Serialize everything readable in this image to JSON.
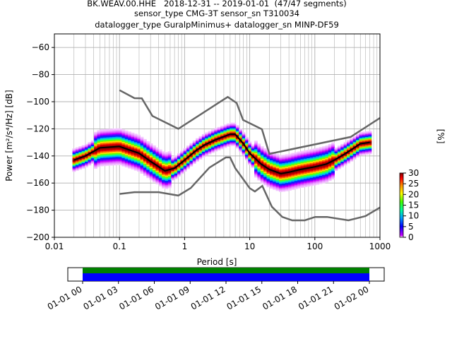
{
  "figure": {
    "title_lines": [
      "BK.WEAV.00.HHE   2018-12-31 -- 2019-01-01  (47/47 segments)",
      "sensor_type CMG-3T sensor_sn T310034",
      "datalogger_type GuralpMinimus+ datalogger_sn MINP-DF59"
    ]
  },
  "chart_data": [
    {
      "type": "heatmap",
      "subtype": "probabilistic power spectral density",
      "xlabel": "Period [s]",
      "ylabel": "Power [m²/s⁴/Hz] [dB]",
      "xscale": "log",
      "xlim": [
        0.01,
        1000
      ],
      "ylim": [
        -200,
        -50
      ],
      "x_ticks": [
        0.01,
        0.1,
        1,
        10,
        100,
        1000
      ],
      "x_tick_labels": [
        "0.01",
        "0.1",
        "1",
        "10",
        "100",
        "1000"
      ],
      "y_ticks": [
        -200,
        -180,
        -160,
        -140,
        -120,
        -100,
        -80,
        -60
      ],
      "y_tick_labels": [
        "−200",
        "−180",
        "−160",
        "−140",
        "−120",
        "−100",
        "−80",
        "−60"
      ],
      "grid": true,
      "colorbar": {
        "label": "[%]",
        "min": 0,
        "max": 30,
        "ticks": [
          0,
          5,
          10,
          15,
          20,
          25,
          30
        ],
        "colormap": [
          "#ffffff",
          "#c800ff",
          "#0000ff",
          "#00a0ff",
          "#00ffa0",
          "#40ff00",
          "#ffff00",
          "#ff9600",
          "#ff0000",
          "#800000"
        ]
      },
      "series": [
        {
          "role": "mean",
          "color": "#000000",
          "x": [
            0.02,
            0.03,
            0.05,
            0.1,
            0.2,
            0.3,
            0.5,
            0.7,
            1,
            1.5,
            2,
            3,
            5,
            6,
            8,
            10,
            15,
            20,
            30,
            40,
            60,
            100,
            150,
            200,
            300,
            500,
            700
          ],
          "y": [
            -143,
            -140,
            -134,
            -133,
            -138,
            -144,
            -151,
            -149,
            -143,
            -136,
            -132,
            -128,
            -124,
            -124,
            -131,
            -138,
            -146,
            -150,
            -153,
            -152,
            -150,
            -148,
            -146,
            -143,
            -138,
            -131,
            -130
          ]
        },
        {
          "role": "noise model high (NHNM)",
          "color": "#666666",
          "x": [
            0.1,
            0.17,
            0.22,
            0.32,
            0.8,
            3.8,
            4.6,
            6.3,
            7.9,
            15.4,
            20,
            354.8,
            1000
          ],
          "y": [
            -91.5,
            -97.4,
            -97.5,
            -110.5,
            -120,
            -99,
            -96.5,
            -101,
            -113.5,
            -120.3,
            -138.5,
            -126,
            -112
          ]
        },
        {
          "role": "noise model low (NLNM)",
          "color": "#666666",
          "x": [
            0.1,
            0.17,
            0.4,
            0.8,
            1.24,
            2.4,
            4.3,
            5,
            6,
            10,
            12,
            15.6,
            21.9,
            31.6,
            45,
            70,
            101,
            154,
            328,
            600,
            1000
          ],
          "y": [
            -168,
            -166.7,
            -166.7,
            -169.2,
            -163.7,
            -148.6,
            -141.1,
            -141.1,
            -149,
            -163.8,
            -166.2,
            -162.1,
            -177.5,
            -185,
            -187.5,
            -187.5,
            -185,
            -185,
            -187.5,
            -184.4,
            -178
          ]
        }
      ]
    },
    {
      "type": "timeline",
      "description": "data availability bar",
      "x_tick_labels": [
        "01-01 00",
        "01-01 03",
        "01-01 06",
        "01-01 09",
        "01-01 12",
        "01-01 15",
        "01-01 18",
        "01-01 21",
        "01-02 00"
      ],
      "bands": [
        {
          "color": "#008000",
          "start": "01-01 00",
          "end": "01-02 00"
        },
        {
          "color": "#0000ff",
          "start": "01-01 00",
          "end": "01-02 00"
        }
      ]
    }
  ]
}
